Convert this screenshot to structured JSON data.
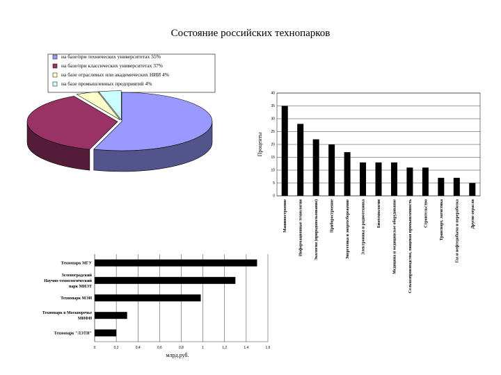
{
  "title": "Состояние российских технопарков",
  "chart_data": [
    {
      "type": "pie",
      "title": "",
      "legend_position": "top",
      "slices": [
        {
          "label": "на базе/при технических университетах",
          "value": 55,
          "value_label": "55%",
          "color": "#9999ff"
        },
        {
          "label": "на базе/при классических университетах",
          "value": 37,
          "value_label": "37%",
          "color": "#993366"
        },
        {
          "label": "на базе отраслевых или академических НИИ",
          "value": 4,
          "value_label": "4%",
          "color": "#ffffcc"
        },
        {
          "label": "на базе промышленных предприятий",
          "value": 4,
          "value_label": "4%",
          "color": "#ccffff"
        }
      ]
    },
    {
      "type": "bar",
      "orientation": "vertical",
      "ylabel": "Проценты",
      "ylim": [
        0,
        40
      ],
      "yticks": [
        0,
        5,
        10,
        15,
        20,
        25,
        30,
        35,
        40
      ],
      "grid": true,
      "bar_color": "#000000",
      "categories": [
        "Машиностроение",
        "Информационные технологии",
        "Экология (природопользование)",
        "Приборостроение",
        "Энергетика и энергосбережение",
        "Электроника и радиотехника",
        "Биотехнологии",
        "Медицина и медицинское оборудование",
        "Сельхозпроизводство, пищевая промышленность",
        "Строительство",
        "Транспорт, логистика",
        "Газ и нефтедобыча и переработка",
        "Другие отрасли"
      ],
      "values": [
        35,
        28,
        22,
        20,
        17,
        13,
        13,
        13,
        11,
        11,
        7,
        7,
        5
      ]
    },
    {
      "type": "bar",
      "orientation": "horizontal",
      "xlabel": "млрд.руб.",
      "xlim": [
        0,
        1.6
      ],
      "xticks": [
        "0",
        "0,2",
        "0,4",
        "0,6",
        "0,8",
        "1",
        "1,2",
        "1,4",
        "1,6"
      ],
      "grid": true,
      "bar_color": "#000000",
      "categories": [
        "Технопарк МГУ",
        "Зеленоградский Научно-технологический парк МИЭТ",
        "Технопарк МЭИ",
        "Технопарк в Москворечье МИФИ",
        "Технопарк \"ЛЭТИ\""
      ],
      "values": [
        1.5,
        1.3,
        0.98,
        0.3,
        0.2
      ]
    }
  ]
}
